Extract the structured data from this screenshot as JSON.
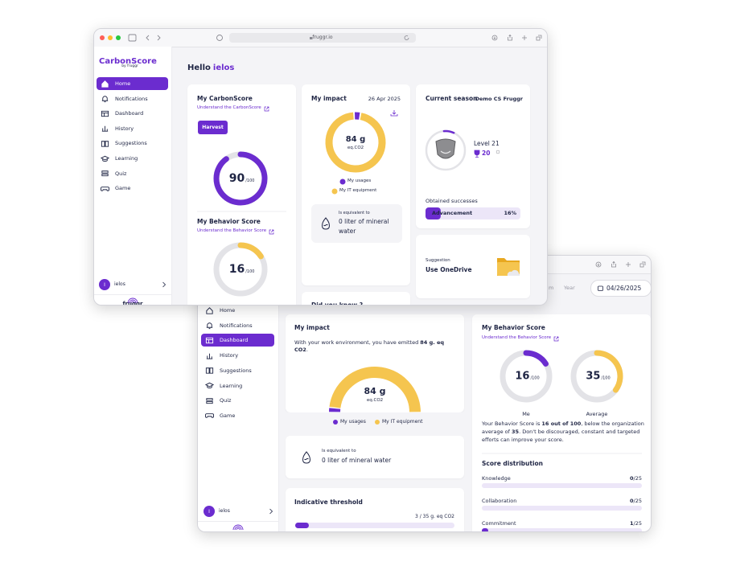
{
  "browser": {
    "url": "fruggr.io"
  },
  "window_main": {
    "brand": "CarbonScore",
    "brand_by": "by fruggr",
    "nav": [
      "Home",
      "Notifications",
      "Dashboard",
      "History",
      "Suggestions",
      "Learning",
      "Quiz",
      "Game"
    ],
    "active_nav": 0,
    "user": {
      "initial": "I",
      "name": "ielos"
    },
    "footer_logo": "fruggr",
    "greeting": {
      "text": "Hello",
      "name": "ielos"
    },
    "carbonscore": {
      "title": "My CarbonScore",
      "link": "Understand the CarbonScore",
      "button": "Harvest",
      "score": 90,
      "max": {
        "value": 100,
        "label": "/100"
      },
      "color": "#6b2ccf"
    },
    "behavior": {
      "title": "My Behavior Score",
      "link": "Understand the Behavior Score",
      "score": 16,
      "max": {
        "value": 100,
        "label": "/100"
      },
      "color": "#f5c54f"
    },
    "impact": {
      "title": "My impact",
      "date": "26 Apr 2025",
      "total": {
        "value": 84,
        "label": "84 g"
      },
      "unit": "eq.CO2",
      "segments": [
        {
          "name": "My usages",
          "color": "#6b2ccf",
          "value": 3
        },
        {
          "name": "My IT equipment",
          "color": "#f5c54f",
          "value": 81
        }
      ],
      "equivalent_label": "Is equivalent to",
      "equivalent": "0 liter of mineral water"
    },
    "did_you_know": "Did you know ?",
    "season": {
      "title": "Current season",
      "name": "Demo CS Fruggr",
      "level": "Level 21",
      "trophies": 20,
      "successes_title": "Obtained successes",
      "advancement": {
        "label": "Advancement",
        "value": 16,
        "value_label": "16%"
      }
    },
    "suggestion": {
      "label": "Suggestion",
      "text": "Use OneDrive"
    }
  },
  "window_dashboard": {
    "nav": [
      "Home",
      "Notifications",
      "Dashboard",
      "History",
      "Suggestions",
      "Learning",
      "Quiz",
      "Game"
    ],
    "active_nav": 2,
    "user": {
      "initial": "I",
      "name": "ielos"
    },
    "tabs": [
      "m",
      "Year"
    ],
    "date": "04/26/2025",
    "impact": {
      "title": "My impact",
      "sentence": [
        "With your work environment, you have emitted ",
        "84 g. eq CO2",
        "."
      ],
      "total": {
        "value": 84,
        "label": "84 g"
      },
      "unit": "eq.CO2",
      "segments": [
        {
          "name": "My usages",
          "color": "#6b2ccf",
          "value": 3
        },
        {
          "name": "My IT equipment",
          "color": "#f5c54f",
          "value": 81
        }
      ]
    },
    "equivalent": {
      "label": "Is equivalent to",
      "text": "0 liter of mineral water"
    },
    "threshold": {
      "title": "Indicative threshold",
      "value": 3,
      "max": 35,
      "label": "3 / 35 g. eq CO2"
    },
    "behavior": {
      "title": "My Behavior Score",
      "link": "Understand the Behavior Score",
      "gauges": [
        {
          "score": 16,
          "max": {
            "value": 100,
            "label": "/100"
          },
          "color": "#6b2ccf",
          "name": "Me"
        },
        {
          "score": 35,
          "max": {
            "value": 100,
            "label": "/100"
          },
          "color": "#f5c54f",
          "name": "Average"
        }
      ],
      "text": [
        "Your Behavior Score is ",
        "16 out of 100",
        ", below the organization average of ",
        "35",
        ". Don't be discouraged, constant and targeted efforts can improve your score."
      ],
      "distribution_title": "Score distribution",
      "distribution": [
        {
          "name": "Knowledge",
          "value": 0,
          "max": {
            "value": 25,
            "label": "/25"
          }
        },
        {
          "name": "Collaboration",
          "value": 0,
          "max": {
            "value": 25,
            "label": "/25"
          }
        },
        {
          "name": "Commitment",
          "value": 1,
          "max": {
            "value": 25,
            "label": "/25"
          }
        }
      ]
    }
  }
}
